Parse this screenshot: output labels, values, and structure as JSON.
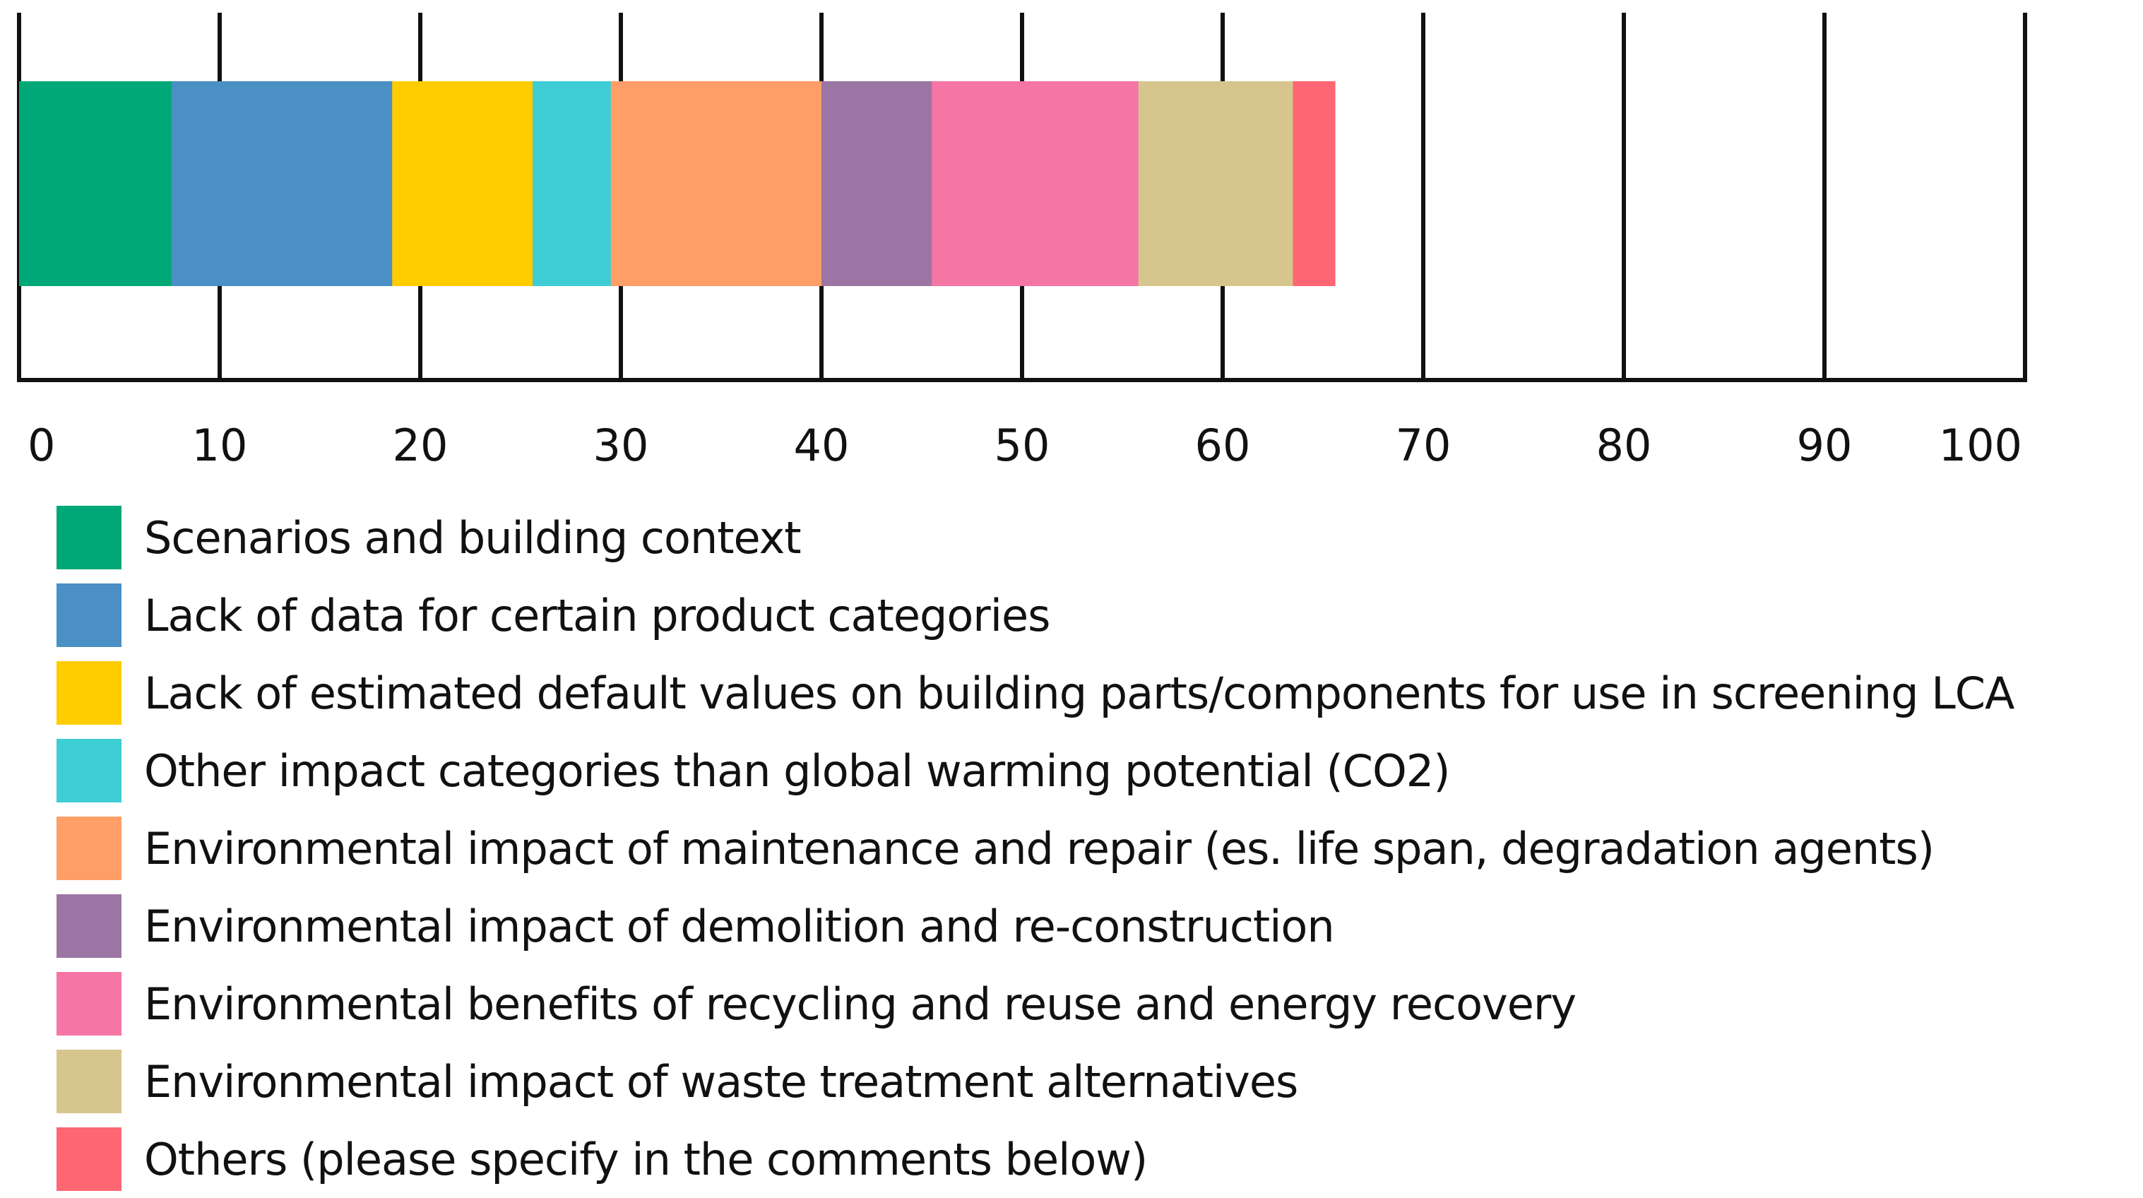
{
  "chart_data": {
    "type": "bar",
    "orientation": "horizontal",
    "stacked": true,
    "title": "",
    "xlabel": "",
    "ylabel": "",
    "xlim": [
      0,
      100
    ],
    "x_ticks": [
      0,
      10,
      20,
      30,
      40,
      50,
      60,
      70,
      80,
      90,
      100
    ],
    "grid": true,
    "legend_position": "bottom-left",
    "series": [
      {
        "name": "Scenarios and building context",
        "value": 7.6,
        "color": "#00A878"
      },
      {
        "name": "Lack of data for certain product categories",
        "value": 11.0,
        "color": "#4A90C4"
      },
      {
        "name": "Lack of estimated default values on building parts/components for use in screening LCA",
        "value": 7.0,
        "color": "#FFCC00"
      },
      {
        "name": "Other impact categories than global warming potential (CO2)",
        "value": 3.9,
        "color": "#3ECDD4"
      },
      {
        "name": "Environmental impact of maintenance and repair (es. life span, degradation agents)",
        "value": 10.5,
        "color": "#FF9E66"
      },
      {
        "name": "Environmental impact of demolition and re-construction",
        "value": 5.5,
        "color": "#9B75A3"
      },
      {
        "name": "Environmental benefits of recycling and reuse and energy recovery",
        "value": 10.3,
        "color": "#F575A4"
      },
      {
        "name": "Environmental impact of waste treatment alternatives",
        "value": 7.7,
        "color": "#D6C68E"
      },
      {
        "name": "Others (please specify in the comments below)",
        "value": 2.1,
        "color": "#FF6673"
      }
    ]
  }
}
